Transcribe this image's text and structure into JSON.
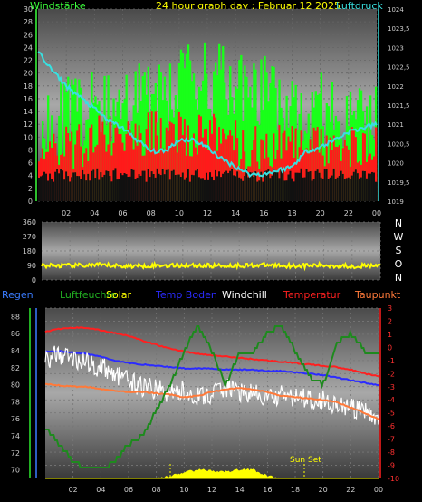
{
  "header": {
    "left_label": "Windstärke",
    "title": "24 hour graph day : Februar 12 2025",
    "right_label": "Luftdruck",
    "colors": {
      "left": "#3cff3c",
      "title": "#ffff00",
      "right": "#38e0e0"
    }
  },
  "direction_labels": [
    "N",
    "W",
    "S",
    "O",
    "N"
  ],
  "legend": [
    {
      "label": "Regen",
      "color": "#3a7cff"
    },
    {
      "label": "Luftfeuchte",
      "color": "#22b022"
    },
    {
      "label": "Solar",
      "color": "#ffff00"
    },
    {
      "label": "Temp Boden",
      "color": "#2b2bff"
    },
    {
      "label": "Windchill",
      "color": "#ffffff"
    },
    {
      "label": "Temperatur",
      "color": "#ff2020"
    },
    {
      "label": "Taupunkt",
      "color": "#ff7a3a"
    }
  ],
  "annotation": {
    "sun_set": "Sun Set"
  },
  "chart_data": [
    {
      "type": "bar",
      "name": "wind",
      "x_ticks": [
        "02",
        "04",
        "06",
        "08",
        "10",
        "12",
        "14",
        "16",
        "18",
        "20",
        "22",
        "00"
      ],
      "y_left_ticks": [
        "0",
        "2",
        "4",
        "6",
        "8",
        "10",
        "12",
        "14",
        "16",
        "18",
        "20",
        "22",
        "24",
        "26",
        "28",
        "30"
      ],
      "y_right_ticks": [
        "1019",
        "1019,5",
        "1020",
        "1020,5",
        "1021",
        "1021,5",
        "1022",
        "1022,5",
        "1023",
        "1023,5",
        "1024"
      ],
      "ylim_left": [
        0,
        30
      ],
      "ylim_right": [
        1019,
        1024
      ],
      "pressure": {
        "x": [
          0,
          1,
          2,
          3,
          4,
          5,
          6,
          7,
          8,
          9,
          10,
          11,
          12,
          13,
          14,
          15,
          16,
          17,
          18,
          19,
          20,
          21,
          22,
          23,
          24
        ],
        "values": [
          1022.9,
          1022.4,
          1022.0,
          1021.7,
          1021.4,
          1021.1,
          1020.9,
          1020.6,
          1020.3,
          1020.3,
          1020.6,
          1020.6,
          1020.4,
          1020.1,
          1019.9,
          1019.7,
          1019.7,
          1019.8,
          1019.9,
          1020.3,
          1020.4,
          1020.6,
          1020.8,
          1020.9,
          1021.0
        ]
      }
    },
    {
      "type": "line",
      "name": "direction",
      "y_ticks": [
        "0",
        "90",
        "180",
        "270",
        "360"
      ],
      "ylim": [
        0,
        360
      ],
      "x": [
        0,
        2,
        4,
        6,
        8,
        10,
        12,
        14,
        16,
        18,
        20,
        22,
        24
      ],
      "values": [
        90,
        88,
        92,
        86,
        90,
        91,
        88,
        90,
        92,
        88,
        90,
        86,
        88
      ]
    },
    {
      "type": "line",
      "name": "climate",
      "y_left_ticks": [
        "70",
        "72",
        "74",
        "76",
        "78",
        "80",
        "82",
        "84",
        "86",
        "88"
      ],
      "ylim_left": [
        69,
        89
      ],
      "y_right_ticks": [
        "3",
        "2",
        "1",
        "0",
        "-1",
        "-2",
        "-3",
        "-4",
        "-5",
        "-6",
        "-7",
        "-8",
        "-9",
        "-10"
      ],
      "ylim_right": [
        -10,
        3
      ],
      "x": [
        0,
        1,
        2,
        3,
        4,
        5,
        6,
        7,
        8,
        9,
        10,
        11,
        12,
        13,
        14,
        15,
        16,
        17,
        18,
        19,
        20,
        21,
        22,
        23,
        24
      ],
      "series": [
        {
          "name": "Temperatur",
          "color": "#ff2020",
          "axis": "right",
          "values": [
            1.2,
            1.4,
            1.5,
            1.5,
            1.3,
            1.1,
            0.9,
            0.5,
            0.2,
            -0.1,
            -0.3,
            -0.5,
            -0.6,
            -0.7,
            -0.8,
            -0.9,
            -1.0,
            -1.1,
            -1.2,
            -1.3,
            -1.4,
            -1.5,
            -1.7,
            -2.0,
            -2.2
          ]
        },
        {
          "name": "Temp Boden",
          "color": "#2b2bff",
          "axis": "right",
          "values": [
            -0.3,
            -0.3,
            -0.4,
            -0.5,
            -0.7,
            -1.0,
            -1.2,
            -1.3,
            -1.4,
            -1.5,
            -1.6,
            -1.6,
            -1.6,
            -1.7,
            -1.7,
            -1.7,
            -1.8,
            -1.8,
            -1.9,
            -2.0,
            -2.1,
            -2.3,
            -2.5,
            -2.7,
            -2.9
          ]
        },
        {
          "name": "Windchill",
          "color": "#ffffff",
          "axis": "right",
          "values": [
            -1.0,
            -0.5,
            -0.8,
            -1.2,
            -1.5,
            -2.0,
            -2.6,
            -3.0,
            -3.2,
            -3.5,
            -3.3,
            -3.8,
            -3.6,
            -3.0,
            -3.4,
            -3.6,
            -3.9,
            -3.7,
            -3.8,
            -3.9,
            -4.0,
            -4.3,
            -4.7,
            -5.0,
            -5.2
          ]
        },
        {
          "name": "Taupunkt",
          "color": "#ff7a3a",
          "axis": "right",
          "values": [
            -2.8,
            -2.9,
            -3.0,
            -3.0,
            -3.2,
            -3.3,
            -3.4,
            -3.4,
            -3.5,
            -3.6,
            -3.8,
            -3.7,
            -3.4,
            -3.2,
            -3.1,
            -3.2,
            -3.4,
            -3.7,
            -3.8,
            -3.9,
            -4.0,
            -4.2,
            -4.6,
            -5.0,
            -5.5
          ]
        },
        {
          "name": "Luftfeuchte",
          "color": "#1e8a1e",
          "axis": "left",
          "values": [
            75,
            73,
            71,
            70,
            70,
            71,
            73,
            74,
            77,
            80,
            84,
            87,
            84,
            80,
            84,
            84,
            86,
            87,
            84,
            81,
            80,
            85,
            86,
            84,
            84
          ]
        },
        {
          "name": "Solar",
          "color": "#ffff00",
          "axis": "none",
          "values": [
            0,
            0,
            0,
            0,
            0,
            0,
            0,
            0,
            0,
            0.2,
            0.6,
            0.9,
            0.8,
            0.7,
            0.9,
            0.9,
            0.2,
            0,
            0,
            0,
            0,
            0,
            0,
            0,
            0
          ]
        }
      ]
    }
  ]
}
